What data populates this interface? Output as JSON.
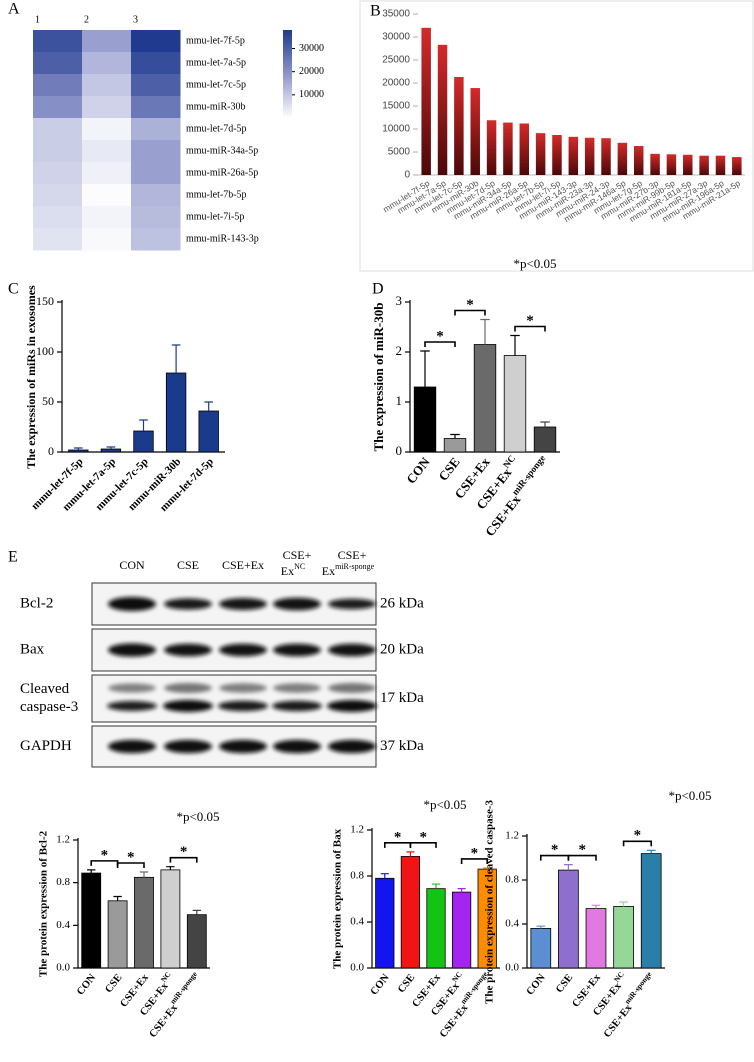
{
  "chart_data": [
    {
      "panel": "A",
      "type": "heatmap",
      "columns": [
        "1",
        "2",
        "3"
      ],
      "rows": [
        "mmu-let-7f-5p",
        "mmu-let-7a-5p",
        "mmu-let-7c-5p",
        "mmu-miR-30b",
        "mmu-let-7d-5p",
        "mmu-miR-34a-5p",
        "mmu-miR-26a-5p",
        "mmu-let-7b-5p",
        "mmu-let-7i-5p",
        "mmu-miR-143-3p"
      ],
      "values": [
        [
          33000,
          17000,
          38000
        ],
        [
          30000,
          13000,
          34000
        ],
        [
          24000,
          10000,
          30000
        ],
        [
          20000,
          8000,
          25000
        ],
        [
          9000,
          2000,
          14000
        ],
        [
          9000,
          4000,
          17000
        ],
        [
          8000,
          2500,
          17000
        ],
        [
          7000,
          500,
          13000
        ],
        [
          6000,
          2000,
          12000
        ],
        [
          5000,
          1000,
          11000
        ]
      ],
      "clim": [
        0,
        38000
      ],
      "colorbar_ticks": [
        10000,
        20000,
        30000
      ],
      "colors": [
        "#ffffff",
        "#8d95c9",
        "#1f3a8f"
      ]
    },
    {
      "panel": "B",
      "type": "bar",
      "categories": [
        "mmu-let-7f-5p",
        "mmu-let-7a-5p",
        "mmu-let-7c-5p",
        "mmu-miR-30b",
        "mmu-let-7d-5p",
        "mmu-miR-34a-5p",
        "mmu-miR-26a-5p",
        "mmu-let-7b-5p",
        "mmu-let-7i-5p",
        "mmu-miR-143-3p",
        "mmu-miR-23a-3p",
        "mmu-miR-24-3p",
        "mmu-miR-146a-5p",
        "mmu-let-7g-5p",
        "mmu-miR-27b-3p",
        "mmu-miR-99b-5p",
        "mmu-miR-181a-5p",
        "mmu-miR-27a-3p",
        "mmu-miR-196a-5p",
        "mmu-miR-21a-5p"
      ],
      "values": [
        32000,
        28300,
        21300,
        18900,
        11900,
        11400,
        11200,
        9100,
        8700,
        8300,
        8100,
        8000,
        7000,
        6300,
        4600,
        4500,
        4400,
        4200,
        4200,
        3900
      ],
      "color": "#d42a2a",
      "ylim": [
        0,
        35000
      ],
      "yticks": [
        0,
        5000,
        10000,
        15000,
        20000,
        25000,
        30000,
        35000
      ]
    },
    {
      "panel": "C",
      "type": "bar",
      "y_label": "The expression of miRs in exosomes",
      "categories": [
        "mmu-let-7f-5p",
        "mmu-let-7a-5p",
        "mmu-let-7c-5p",
        "mmu-miR-30b",
        "mmu-let-7d-5p"
      ],
      "values": [
        2,
        3,
        21,
        79,
        41
      ],
      "errors": [
        2,
        2,
        11,
        28,
        9
      ],
      "color": "#1a3a8c",
      "ylim": [
        0,
        150
      ],
      "yticks": [
        0,
        50,
        100,
        150
      ]
    },
    {
      "panel": "D",
      "type": "bar",
      "y_label": "The expression of miR-30b",
      "note": "*p<0.05",
      "categories": [
        "CON",
        "CSE",
        "CSE+Ex",
        "CSE+Ex",
        "CSE+Ex"
      ],
      "category_superscripts": [
        null,
        null,
        null,
        "NC",
        "miR-sponge"
      ],
      "values": [
        1.3,
        0.27,
        2.15,
        1.93,
        0.5
      ],
      "errors": [
        0.72,
        0.08,
        0.5,
        0.4,
        0.1
      ],
      "colors": [
        "#000000",
        "#9a9a9a",
        "#6a6a6a",
        "#cfcfcf",
        "#444444"
      ],
      "ylim": [
        0,
        3
      ],
      "yticks": [
        0,
        1,
        2,
        3
      ],
      "significance": [
        {
          "pair": [
            0,
            1
          ],
          "label": "*"
        },
        {
          "pair": [
            1,
            2
          ],
          "label": "*"
        },
        {
          "pair": [
            3,
            4
          ],
          "label": "*"
        }
      ]
    },
    {
      "type": "bar",
      "y_label": "The protein expression of Bcl-2",
      "note": "*p<0.05",
      "categories": [
        "CON",
        "CSE",
        "CSE+Ex",
        "CSE+Ex",
        "CSE+Ex"
      ],
      "category_superscripts": [
        null,
        null,
        null,
        "NC",
        "miR-sponge"
      ],
      "values": [
        0.89,
        0.63,
        0.85,
        0.92,
        0.5
      ],
      "errors": [
        0.03,
        0.04,
        0.05,
        0.03,
        0.04
      ],
      "colors": [
        "#000000",
        "#9a9a9a",
        "#6a6a6a",
        "#cfcfcf",
        "#444444"
      ],
      "ylim": [
        0,
        1.2
      ],
      "yticks": [
        {
          "value": 0,
          "label": "0.0"
        },
        0.4,
        0.8,
        1.2
      ],
      "significance": [
        {
          "pair": [
            0,
            1
          ],
          "label": "*"
        },
        {
          "pair": [
            1,
            2
          ],
          "label": "*"
        },
        {
          "pair": [
            3,
            4
          ],
          "label": "*"
        }
      ]
    },
    {
      "type": "bar",
      "y_label": "The protein expression of Bax",
      "note": "*p<0.05",
      "categories": [
        "CON",
        "CSE",
        "CSE+Ex",
        "CSE+Ex",
        "CSE+Ex"
      ],
      "category_superscripts": [
        null,
        null,
        null,
        "NC",
        "miR-sponge"
      ],
      "values": [
        0.78,
        0.97,
        0.69,
        0.66,
        0.86
      ],
      "errors": [
        0.04,
        0.04,
        0.04,
        0.03,
        0.01
      ],
      "colors": [
        "#1414f0",
        "#f01414",
        "#14c414",
        "#a424f0",
        "#ff8c00"
      ],
      "ylim": [
        0,
        1.2
      ],
      "yticks": [
        {
          "value": 0,
          "label": "0.0"
        },
        0.4,
        0.8,
        1.2
      ],
      "significance": [
        {
          "pair": [
            0,
            1
          ],
          "label": "*"
        },
        {
          "pair": [
            1,
            2
          ],
          "label": "*"
        },
        {
          "pair": [
            3,
            4
          ],
          "label": "*"
        }
      ]
    },
    {
      "type": "bar",
      "y_label": "The protein expression of cleaved caspase-3",
      "note": "*p<0.05",
      "categories": [
        "CON",
        "CSE",
        "CSE+Ex",
        "CSE+Ex",
        "CSE+Ex"
      ],
      "category_superscripts": [
        null,
        null,
        null,
        "NC",
        "miR-sponge"
      ],
      "values": [
        0.36,
        0.89,
        0.54,
        0.56,
        1.04
      ],
      "errors": [
        0.02,
        0.05,
        0.03,
        0.04,
        0.03
      ],
      "colors": [
        "#5b8fd1",
        "#8f6fce",
        "#e07ae0",
        "#96d696",
        "#2a7fa8"
      ],
      "ylim": [
        0,
        1.2
      ],
      "yticks": [
        {
          "value": 0,
          "label": "0.0"
        },
        0.4,
        0.8,
        1.2
      ],
      "significance": [
        {
          "pair": [
            0,
            1
          ],
          "label": "*"
        },
        {
          "pair": [
            1,
            2
          ],
          "label": "*"
        },
        {
          "pair": [
            3,
            4
          ],
          "label": "*"
        }
      ]
    }
  ],
  "blot": {
    "panel": "E",
    "lanes": [
      {
        "text": "CON"
      },
      {
        "text": "CSE"
      },
      {
        "text": "CSE+Ex"
      },
      {
        "text": "CSE+",
        "text2": "Ex",
        "sup": "NC"
      },
      {
        "text": "CSE+",
        "text2": "Ex",
        "sup": "miR-sponge"
      }
    ],
    "rows": [
      {
        "label": [
          "Bcl-2"
        ],
        "size": "26 kDa"
      },
      {
        "label": [
          "Bax"
        ],
        "size": "20 kDa"
      },
      {
        "label": [
          "Cleaved",
          "caspase-3"
        ],
        "size": "17 kDa"
      },
      {
        "label": [
          "GAPDH"
        ],
        "size": "37 kDa"
      }
    ]
  }
}
